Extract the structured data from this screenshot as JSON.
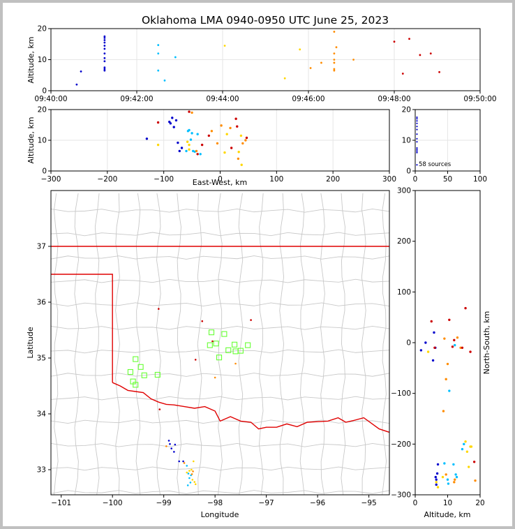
{
  "title": "Oklahoma LMA 0940-0950 UTC June 25, 2023",
  "colors": {
    "early": "#0000cc",
    "mid": "#00bfff",
    "mid2": "#ffd700",
    "late": "#ff8c00",
    "latest": "#cc0000",
    "station": "#66ff33",
    "border": "#e00000",
    "county": "#c8c8c8"
  },
  "chart_data": [
    {
      "panel": "altitude-vs-time",
      "type": "scatter",
      "ylabel": "Altitude, km",
      "ylim": [
        0,
        20
      ],
      "yticks": [
        "0",
        "10",
        "20"
      ],
      "xticks": [
        "09:40:00",
        "09:42:00",
        "09:44:00",
        "09:46:00",
        "09:48:00",
        "09:50:00"
      ],
      "xlim_min": [
        0,
        10
      ],
      "points_min_alt": [
        [
          0.6,
          2
        ],
        [
          0.7,
          6.2
        ],
        [
          1.25,
          6.5
        ],
        [
          1.25,
          7
        ],
        [
          1.25,
          7.5
        ],
        [
          1.25,
          9.5
        ],
        [
          1.25,
          10.5
        ],
        [
          1.25,
          12
        ],
        [
          1.25,
          13.5
        ],
        [
          1.25,
          14.5
        ],
        [
          1.25,
          15.5
        ],
        [
          1.25,
          16.3
        ],
        [
          1.25,
          17
        ],
        [
          1.25,
          17.5
        ],
        [
          2.5,
          6.5
        ],
        [
          2.5,
          12
        ],
        [
          2.5,
          14.7
        ],
        [
          2.65,
          3.3
        ],
        [
          2.9,
          10.8
        ],
        [
          4.05,
          14.5
        ],
        [
          5.45,
          4
        ],
        [
          5.8,
          13.3
        ],
        [
          6.05,
          7.3
        ],
        [
          6.3,
          9
        ],
        [
          6.6,
          6.5
        ],
        [
          6.6,
          7
        ],
        [
          6.6,
          9
        ],
        [
          6.6,
          10
        ],
        [
          6.6,
          12
        ],
        [
          6.6,
          19
        ],
        [
          6.65,
          14
        ],
        [
          7.05,
          10
        ],
        [
          8.0,
          15.8
        ],
        [
          8.2,
          5.5
        ],
        [
          8.35,
          16.7
        ],
        [
          8.6,
          11.5
        ],
        [
          8.85,
          12
        ],
        [
          9.05,
          6
        ]
      ]
    },
    {
      "panel": "altitude-vs-eastwest",
      "type": "scatter",
      "xlabel": "East-West, km",
      "ylabel": "Altitude, km",
      "xlim": [
        -300,
        300
      ],
      "ylim": [
        0,
        20
      ],
      "xticks": [
        "−300",
        "−200",
        "−100",
        "0",
        "100",
        "200",
        "300"
      ],
      "yticks": [
        "0",
        "10",
        "20"
      ],
      "points": [
        [
          -130,
          10.5
        ],
        [
          -88,
          15.5
        ],
        [
          -85,
          17.3
        ],
        [
          -90,
          16
        ],
        [
          -82,
          14.3
        ],
        [
          -78,
          16.5
        ],
        [
          -75,
          9.2
        ],
        [
          -72,
          6.5
        ],
        [
          -68,
          7.5
        ],
        [
          -60,
          6.5
        ],
        [
          -57,
          13
        ],
        [
          -55,
          13.3
        ],
        [
          -52,
          10.2
        ],
        [
          -50,
          12.3
        ],
        [
          -48,
          6.5
        ],
        [
          -45,
          6.3
        ],
        [
          -40,
          12
        ],
        [
          -35,
          5.5
        ],
        [
          8,
          6
        ],
        [
          12,
          12
        ],
        [
          37,
          11.5
        ],
        [
          38,
          2
        ],
        [
          33,
          6.2
        ],
        [
          -110,
          8.5
        ],
        [
          -58,
          9.5
        ],
        [
          -55,
          8.5
        ],
        [
          -55,
          7
        ],
        [
          -50,
          19
        ],
        [
          -42,
          6.5
        ],
        [
          -15,
          13
        ],
        [
          -5,
          9
        ],
        [
          18,
          14
        ],
        [
          32,
          4
        ],
        [
          40,
          9
        ],
        [
          45,
          10
        ],
        [
          2,
          14.8
        ],
        [
          30,
          14.5
        ],
        [
          47,
          10.8
        ],
        [
          20,
          7.5
        ],
        [
          -55,
          19.3
        ],
        [
          -32,
          8.5
        ],
        [
          -20,
          11.5
        ],
        [
          -110,
          15.8
        ],
        [
          28,
          17
        ],
        [
          -40,
          5.5
        ]
      ]
    },
    {
      "panel": "source-count-histogram",
      "type": "scatter",
      "xlim": [
        0,
        100
      ],
      "xticks": [
        "0",
        "50",
        "100"
      ],
      "yticks": [
        "0",
        "10",
        "20"
      ],
      "annotation": "58 sources"
    },
    {
      "panel": "plan-view-map",
      "type": "scatter",
      "xlabel": "Longitude",
      "ylabel": "Latitude",
      "xlim": [
        -101.2,
        -94.6
      ],
      "ylim": [
        32.55,
        38.0
      ],
      "xticks": [
        "−101",
        "−100",
        "−99",
        "−98",
        "−97",
        "−96",
        "−95"
      ],
      "yticks": [
        "33",
        "34",
        "35",
        "36",
        "37"
      ],
      "stations": [
        [
          -99.55,
          34.98
        ],
        [
          -99.45,
          34.84
        ],
        [
          -99.65,
          34.75
        ],
        [
          -99.38,
          34.69
        ],
        [
          -99.12,
          34.7
        ],
        [
          -99.6,
          34.58
        ],
        [
          -99.55,
          34.52
        ],
        [
          -98.07,
          35.46
        ],
        [
          -97.82,
          35.43
        ],
        [
          -98.1,
          35.23
        ],
        [
          -97.98,
          35.26
        ],
        [
          -97.62,
          35.24
        ],
        [
          -97.74,
          35.14
        ],
        [
          -97.6,
          35.12
        ],
        [
          -97.5,
          35.13
        ],
        [
          -97.36,
          35.23
        ],
        [
          -97.92,
          35.01
        ]
      ],
      "points": [
        [
          -98.9,
          33.52
        ],
        [
          -98.88,
          33.46
        ],
        [
          -98.85,
          33.38
        ],
        [
          -98.8,
          33.32
        ],
        [
          -98.78,
          33.45
        ],
        [
          -98.7,
          33.15
        ],
        [
          -98.62,
          33.15
        ],
        [
          -98.55,
          33.07
        ],
        [
          -98.52,
          32.93
        ],
        [
          -98.5,
          32.85
        ],
        [
          -98.48,
          32.77
        ],
        [
          -98.53,
          32.72
        ],
        [
          -98.47,
          32.9
        ],
        [
          -98.44,
          32.82
        ],
        [
          -98.55,
          32.95
        ],
        [
          -98.5,
          32.98
        ],
        [
          -98.46,
          33.0
        ],
        [
          -98.42,
          33.15
        ],
        [
          -98.4,
          32.78
        ],
        [
          -98.38,
          32.74
        ],
        [
          -98.45,
          32.92
        ],
        [
          -98.43,
          32.97
        ],
        [
          -98.0,
          34.65
        ],
        [
          -97.6,
          34.9
        ],
        [
          -98.95,
          33.42
        ],
        [
          -98.6,
          33.12
        ],
        [
          -97.3,
          35.68
        ],
        [
          -99.1,
          35.88
        ],
        [
          -98.25,
          35.66
        ],
        [
          -98.05,
          35.3
        ],
        [
          -98.38,
          34.97
        ],
        [
          -99.08,
          34.08
        ]
      ]
    },
    {
      "panel": "northsouth-vs-altitude",
      "type": "scatter",
      "xlabel": "Altitude, km",
      "ylabel": "North-South, km",
      "xlim": [
        0,
        20
      ],
      "ylim": [
        -300,
        300
      ],
      "xticks": [
        "0",
        "10",
        "20"
      ],
      "yticks": [
        "−300",
        "−200",
        "−100",
        "0",
        "100",
        "200",
        "300"
      ],
      "points": [
        [
          1.8,
          -15
        ],
        [
          3.2,
          0
        ],
        [
          5.5,
          -35
        ],
        [
          5.8,
          20
        ],
        [
          6.2,
          -10
        ],
        [
          6.3,
          -265
        ],
        [
          6.5,
          -270
        ],
        [
          6.5,
          -280
        ],
        [
          6.8,
          -258
        ],
        [
          7.0,
          -240
        ],
        [
          9.0,
          -238
        ],
        [
          10.0,
          -270
        ],
        [
          10.2,
          -278
        ],
        [
          10.5,
          -95
        ],
        [
          11.8,
          -240
        ],
        [
          12.2,
          -5
        ],
        [
          12.5,
          -260
        ],
        [
          12.8,
          -265
        ],
        [
          14.5,
          -210
        ],
        [
          15.0,
          -200
        ],
        [
          15.5,
          -195
        ],
        [
          16.0,
          -215
        ],
        [
          16.5,
          -245
        ],
        [
          17.0,
          -205
        ],
        [
          17.3,
          -205
        ],
        [
          4.0,
          -18
        ],
        [
          6.5,
          -275
        ],
        [
          7.0,
          -285
        ],
        [
          8.5,
          -265
        ],
        [
          8.7,
          -135
        ],
        [
          9.0,
          8
        ],
        [
          9.5,
          -72
        ],
        [
          9.5,
          -260
        ],
        [
          10.0,
          -42
        ],
        [
          12.0,
          -275
        ],
        [
          12.2,
          -270
        ],
        [
          13.0,
          10
        ],
        [
          14.0,
          -10
        ],
        [
          18.5,
          -272
        ],
        [
          18.2,
          -235
        ],
        [
          10.5,
          45
        ],
        [
          14.5,
          -10
        ],
        [
          6.0,
          -10
        ],
        [
          5.0,
          42
        ],
        [
          12.0,
          5
        ],
        [
          11.5,
          -8
        ],
        [
          15.5,
          68
        ],
        [
          17.0,
          -18
        ]
      ]
    }
  ]
}
